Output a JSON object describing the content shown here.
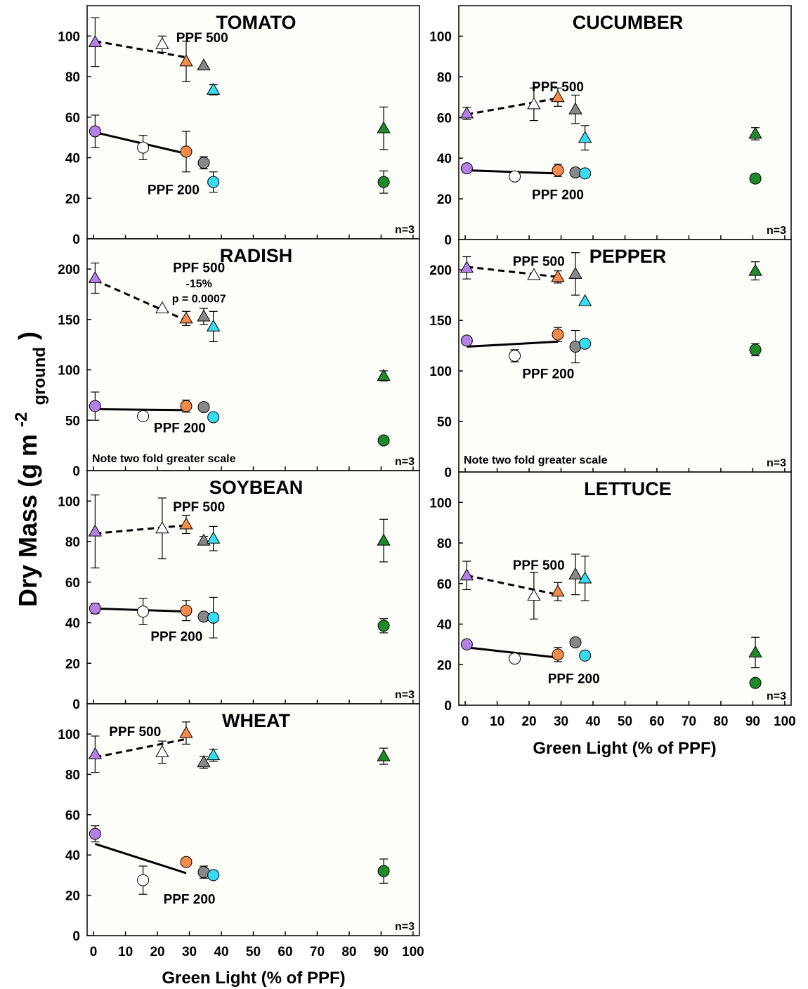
{
  "figure": {
    "ylabel_main": "Dry Mass (g m",
    "ylabel_sup": "-2",
    "ylabel_sub": "ground",
    "ylabel_close": ")",
    "xlabel": "Green Light (% of PPF)",
    "n_label": "n=3",
    "scale_note": "Note two fold greater scale",
    "x_ticks": [
      0,
      10,
      20,
      30,
      40,
      50,
      60,
      70,
      80,
      90,
      100
    ]
  },
  "colors": {
    "purple": "#b57fe6",
    "white": "#ffffff",
    "orange": "#f58a4a",
    "gray": "#888888",
    "cyan": "#38dcf0",
    "green": "#1f8a2a",
    "panel_bg": "#fdfdf9"
  },
  "chart_data": [
    {
      "type": "scatter",
      "title": "TOMATO",
      "ylim": [
        0,
        115
      ],
      "yticks": [
        0,
        20,
        40,
        60,
        80,
        100
      ],
      "xlim": [
        -2,
        102
      ],
      "labels": [
        {
          "text": "PPF 500",
          "x": 34,
          "y": 99
        },
        {
          "text": "PPF 200",
          "x": 25,
          "y": 24
        }
      ],
      "series": [
        {
          "name": "PPF 500",
          "marker": "triangle",
          "points": [
            {
              "x": 0.5,
              "y": 97,
              "err": 12,
              "color": "purple"
            },
            {
              "x": 21.5,
              "y": 96,
              "err": 4,
              "color": "white"
            },
            {
              "x": 29,
              "y": 87.5,
              "err": 10,
              "color": "orange"
            },
            {
              "x": 34.5,
              "y": 85.5,
              "err": 0,
              "color": "gray"
            },
            {
              "x": 37.5,
              "y": 73.5,
              "err": 2.5,
              "color": "cyan"
            },
            {
              "x": 90.8,
              "y": 54.5,
              "err": 10.5,
              "color": "green"
            }
          ],
          "fit": {
            "x": [
              0.5,
              29
            ],
            "y": [
              97.5,
              89.5
            ],
            "style": "dashed"
          }
        },
        {
          "name": "PPF 200",
          "marker": "circle",
          "points": [
            {
              "x": 0.5,
              "y": 53,
              "err": 8,
              "color": "purple"
            },
            {
              "x": 15.5,
              "y": 45,
              "err": 6,
              "color": "white"
            },
            {
              "x": 29,
              "y": 43,
              "err": 10,
              "color": "orange"
            },
            {
              "x": 34.5,
              "y": 37.5,
              "err": 3,
              "color": "gray"
            },
            {
              "x": 37.5,
              "y": 28,
              "err": 5,
              "color": "cyan"
            },
            {
              "x": 90.8,
              "y": 28,
              "err": 5.5,
              "color": "green"
            }
          ],
          "fit": {
            "x": [
              0.5,
              29
            ],
            "y": [
              52.5,
              42
            ],
            "style": "solid"
          }
        }
      ]
    },
    {
      "type": "scatter",
      "title": "CUCUMBER",
      "ylim": [
        0,
        115
      ],
      "yticks": [
        0,
        20,
        40,
        60,
        80,
        100
      ],
      "xlim": [
        -2,
        102
      ],
      "labels": [
        {
          "text": "PPF 500",
          "x": 29,
          "y": 75
        },
        {
          "text": "PPF 200",
          "x": 29,
          "y": 22
        }
      ],
      "series": [
        {
          "name": "PPF 500",
          "marker": "triangle",
          "points": [
            {
              "x": 0.5,
              "y": 62,
              "err": 3,
              "color": "purple"
            },
            {
              "x": 21.5,
              "y": 66.5,
              "err": 8,
              "color": "white"
            },
            {
              "x": 29,
              "y": 70,
              "err": 4.5,
              "color": "orange"
            },
            {
              "x": 34.5,
              "y": 64,
              "err": 7,
              "color": "gray"
            },
            {
              "x": 37.5,
              "y": 50,
              "err": 6,
              "color": "cyan"
            },
            {
              "x": 90.8,
              "y": 52,
              "err": 3,
              "color": "green"
            }
          ],
          "fit": {
            "x": [
              0.5,
              29
            ],
            "y": [
              61.5,
              69.5
            ],
            "style": "dashed"
          }
        },
        {
          "name": "PPF 200",
          "marker": "circle",
          "points": [
            {
              "x": 0.5,
              "y": 35,
              "err": 2,
              "color": "purple"
            },
            {
              "x": 15.5,
              "y": 31,
              "err": 0,
              "color": "white"
            },
            {
              "x": 29,
              "y": 34,
              "err": 3,
              "color": "orange"
            },
            {
              "x": 34.5,
              "y": 33,
              "err": 2,
              "color": "gray"
            },
            {
              "x": 37.5,
              "y": 32.5,
              "err": 2,
              "color": "cyan"
            },
            {
              "x": 90.8,
              "y": 30,
              "err": 2,
              "color": "green"
            }
          ],
          "fit": {
            "x": [
              0.5,
              29
            ],
            "y": [
              34,
              32.5
            ],
            "style": "solid"
          }
        }
      ]
    },
    {
      "type": "scatter",
      "title": "RADISH",
      "ylim": [
        0,
        230
      ],
      "yticks": [
        0,
        50,
        100,
        150,
        200
      ],
      "xlim": [
        -2,
        102
      ],
      "labels": [
        {
          "text": "PPF 500",
          "x": 33,
          "y": 201
        },
        {
          "text": "-15%",
          "x": 33,
          "y": 186
        },
        {
          "text": "p = 0.0007",
          "x": 33,
          "y": 171
        },
        {
          "text": "PPF 200",
          "x": 27,
          "y": 42
        }
      ],
      "series": [
        {
          "name": "PPF 500",
          "marker": "triangle",
          "points": [
            {
              "x": 0.5,
              "y": 191,
              "err": 15,
              "color": "purple"
            },
            {
              "x": 21.5,
              "y": 161,
              "err": 0,
              "color": "white"
            },
            {
              "x": 29,
              "y": 151,
              "err": 7,
              "color": "orange"
            },
            {
              "x": 34.5,
              "y": 153,
              "err": 8,
              "color": "gray"
            },
            {
              "x": 37.5,
              "y": 143,
              "err": 15,
              "color": "cyan"
            },
            {
              "x": 90.8,
              "y": 94,
              "err": 5,
              "color": "green"
            }
          ],
          "fit": {
            "x": [
              0.5,
              29
            ],
            "y": [
              189,
              149
            ],
            "style": "dashed"
          }
        },
        {
          "name": "PPF 200",
          "marker": "circle",
          "points": [
            {
              "x": 0.5,
              "y": 64,
              "err": 14,
              "color": "purple"
            },
            {
              "x": 15.5,
              "y": 54,
              "err": 0,
              "color": "white"
            },
            {
              "x": 29,
              "y": 64,
              "err": 6,
              "color": "orange"
            },
            {
              "x": 34.5,
              "y": 63,
              "err": 0,
              "color": "gray"
            },
            {
              "x": 37.5,
              "y": 53,
              "err": 0,
              "color": "cyan"
            },
            {
              "x": 90.8,
              "y": 30,
              "err": 0,
              "color": "green"
            }
          ],
          "fit": {
            "x": [
              0.5,
              29
            ],
            "y": [
              61,
              60
            ],
            "style": "solid"
          }
        }
      ]
    },
    {
      "type": "scatter",
      "title": "PEPPER",
      "ylim": [
        0,
        230
      ],
      "yticks": [
        0,
        50,
        100,
        150,
        200
      ],
      "xlim": [
        -2,
        102
      ],
      "labels": [
        {
          "text": "PPF 500",
          "x": 23,
          "y": 208
        },
        {
          "text": "PPF 200",
          "x": 26,
          "y": 97
        }
      ],
      "series": [
        {
          "name": "PPF 500",
          "marker": "triangle",
          "points": [
            {
              "x": 0.5,
              "y": 202,
              "err": 11,
              "color": "purple"
            },
            {
              "x": 21.5,
              "y": 195,
              "err": 0,
              "color": "white"
            },
            {
              "x": 29,
              "y": 193,
              "err": 6,
              "color": "orange"
            },
            {
              "x": 34.5,
              "y": 196,
              "err": 21,
              "color": "gray"
            },
            {
              "x": 37.5,
              "y": 169,
              "err": 0,
              "color": "cyan"
            },
            {
              "x": 90.8,
              "y": 199,
              "err": 9,
              "color": "green"
            }
          ],
          "fit": {
            "x": [
              0.5,
              29
            ],
            "y": [
              203,
              193
            ],
            "style": "dashed"
          }
        },
        {
          "name": "PPF 200",
          "marker": "circle",
          "points": [
            {
              "x": 0.5,
              "y": 130,
              "err": 0,
              "color": "purple"
            },
            {
              "x": 15.5,
              "y": 115,
              "err": 6,
              "color": "white"
            },
            {
              "x": 29,
              "y": 136,
              "err": 7,
              "color": "orange"
            },
            {
              "x": 34.5,
              "y": 124,
              "err": 16,
              "color": "gray"
            },
            {
              "x": 37.5,
              "y": 127,
              "err": 0,
              "color": "cyan"
            },
            {
              "x": 90.8,
              "y": 121,
              "err": 6,
              "color": "green"
            }
          ],
          "fit": {
            "x": [
              0.5,
              29
            ],
            "y": [
              124,
              129
            ],
            "style": "solid"
          }
        }
      ]
    },
    {
      "type": "scatter",
      "title": "SOYBEAN",
      "ylim": [
        0,
        115
      ],
      "yticks": [
        0,
        20,
        40,
        60,
        80,
        100
      ],
      "xlim": [
        -2,
        102
      ],
      "labels": [
        {
          "text": "PPF 500",
          "x": 33,
          "y": 97
        },
        {
          "text": "PPF 200",
          "x": 26,
          "y": 33
        }
      ],
      "series": [
        {
          "name": "PPF 500",
          "marker": "triangle",
          "points": [
            {
              "x": 0.5,
              "y": 85,
              "err": 18,
              "color": "purple"
            },
            {
              "x": 21.5,
              "y": 86.5,
              "err": 15,
              "color": "white"
            },
            {
              "x": 29,
              "y": 88.5,
              "err": 4.5,
              "color": "orange"
            },
            {
              "x": 34.5,
              "y": 80.5,
              "err": 2,
              "color": "gray"
            },
            {
              "x": 37.5,
              "y": 81.5,
              "err": 6,
              "color": "cyan"
            },
            {
              "x": 90.8,
              "y": 80.5,
              "err": 10.5,
              "color": "green"
            }
          ],
          "fit": {
            "x": [
              0.5,
              29
            ],
            "y": [
              84,
              88
            ],
            "style": "dashed"
          }
        },
        {
          "name": "PPF 200",
          "marker": "circle",
          "points": [
            {
              "x": 0.5,
              "y": 47,
              "err": 2.5,
              "color": "purple"
            },
            {
              "x": 15.5,
              "y": 45.5,
              "err": 6.5,
              "color": "white"
            },
            {
              "x": 29,
              "y": 46,
              "err": 5,
              "color": "orange"
            },
            {
              "x": 34.5,
              "y": 43,
              "err": 0,
              "color": "gray"
            },
            {
              "x": 37.5,
              "y": 42.5,
              "err": 10,
              "color": "cyan"
            },
            {
              "x": 90.8,
              "y": 38.5,
              "err": 3.5,
              "color": "green"
            }
          ],
          "fit": {
            "x": [
              0.5,
              29
            ],
            "y": [
              47,
              45.5
            ],
            "style": "solid"
          }
        }
      ]
    },
    {
      "type": "scatter",
      "title": "LETTUCE",
      "ylim": [
        0,
        115
      ],
      "yticks": [
        0,
        20,
        40,
        60,
        80,
        100
      ],
      "xlim": [
        -2,
        102
      ],
      "labels": [
        {
          "text": "PPF 500",
          "x": 23,
          "y": 69
        },
        {
          "text": "PPF 200",
          "x": 34,
          "y": 13
        }
      ],
      "series": [
        {
          "name": "PPF 500",
          "marker": "triangle",
          "points": [
            {
              "x": 0.5,
              "y": 64,
              "err": 7,
              "color": "purple"
            },
            {
              "x": 21.5,
              "y": 54,
              "err": 11.5,
              "color": "white"
            },
            {
              "x": 29,
              "y": 56,
              "err": 4.5,
              "color": "orange"
            },
            {
              "x": 34.5,
              "y": 64.5,
              "err": 10,
              "color": "gray"
            },
            {
              "x": 37.5,
              "y": 62.5,
              "err": 11,
              "color": "cyan"
            },
            {
              "x": 90.8,
              "y": 26,
              "err": 7.5,
              "color": "green"
            }
          ],
          "fit": {
            "x": [
              0.5,
              29
            ],
            "y": [
              64,
              54.5
            ],
            "style": "dashed"
          }
        },
        {
          "name": "PPF 200",
          "marker": "circle",
          "points": [
            {
              "x": 0.5,
              "y": 30,
              "err": 0,
              "color": "purple"
            },
            {
              "x": 15.5,
              "y": 23,
              "err": 0,
              "color": "white"
            },
            {
              "x": 29,
              "y": 25,
              "err": 3.5,
              "color": "orange"
            },
            {
              "x": 34.5,
              "y": 31,
              "err": 0,
              "color": "gray"
            },
            {
              "x": 37.5,
              "y": 24.5,
              "err": 0,
              "color": "cyan"
            },
            {
              "x": 90.8,
              "y": 11,
              "err": 0,
              "color": "green"
            }
          ],
          "fit": {
            "x": [
              0.5,
              29
            ],
            "y": [
              28.5,
              23.5
            ],
            "style": "solid"
          }
        }
      ]
    },
    {
      "type": "scatter",
      "title": "WHEAT",
      "ylim": [
        0,
        115
      ],
      "yticks": [
        0,
        20,
        40,
        60,
        80,
        100
      ],
      "xlim": [
        -2,
        102
      ],
      "labels": [
        {
          "text": "PPF 500",
          "x": 13,
          "y": 101
        },
        {
          "text": "PPF 200",
          "x": 30,
          "y": 18
        }
      ],
      "series": [
        {
          "name": "PPF 500",
          "marker": "triangle",
          "points": [
            {
              "x": 0.5,
              "y": 90,
              "err": 9,
              "color": "purple"
            },
            {
              "x": 21.5,
              "y": 91,
              "err": 5.5,
              "color": "white"
            },
            {
              "x": 29,
              "y": 100.5,
              "err": 5.5,
              "color": "orange"
            },
            {
              "x": 34.5,
              "y": 86,
              "err": 3,
              "color": "gray"
            },
            {
              "x": 37.5,
              "y": 89.5,
              "err": 3,
              "color": "cyan"
            },
            {
              "x": 90.8,
              "y": 89,
              "err": 4,
              "color": "green"
            }
          ],
          "fit": {
            "x": [
              0.5,
              29
            ],
            "y": [
              88.5,
              97.5
            ],
            "style": "dashed"
          }
        },
        {
          "name": "PPF 200",
          "marker": "circle",
          "points": [
            {
              "x": 0.5,
              "y": 50.5,
              "err": 4,
              "color": "purple"
            },
            {
              "x": 15.5,
              "y": 27.5,
              "err": 7,
              "color": "white"
            },
            {
              "x": 29,
              "y": 36.5,
              "err": 0,
              "color": "orange"
            },
            {
              "x": 34.5,
              "y": 31.5,
              "err": 3,
              "color": "gray"
            },
            {
              "x": 37.5,
              "y": 30,
              "err": 0,
              "color": "cyan"
            },
            {
              "x": 90.8,
              "y": 32,
              "err": 6,
              "color": "green"
            }
          ],
          "fit": {
            "x": [
              0.5,
              29
            ],
            "y": [
              45.5,
              31
            ],
            "style": "solid"
          }
        }
      ]
    }
  ]
}
